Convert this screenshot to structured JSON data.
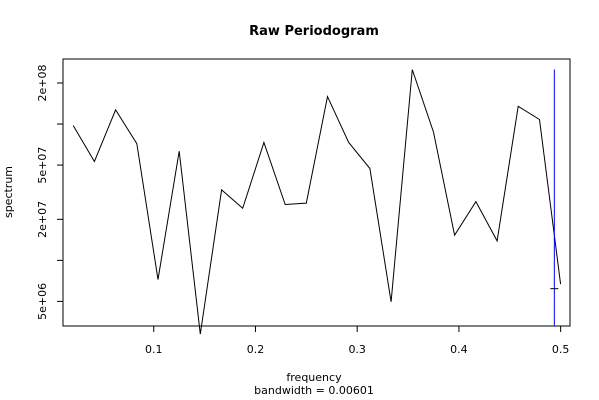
{
  "chart_data": {
    "type": "line",
    "title": "Raw Periodogram",
    "xlabel": "frequency",
    "sublabel": "bandwidth = 0.00601",
    "ylabel": "spectrum",
    "log_y": true,
    "xlim": [
      0.0108,
      0.5092
    ],
    "ylim": [
      3300000,
      300000000
    ],
    "x_ticks": [
      0.1,
      0.2,
      0.3,
      0.4,
      0.5
    ],
    "x_tick_labels": [
      "0.1",
      "0.2",
      "0.3",
      "0.4",
      "0.5"
    ],
    "y_ticks": [
      5000000,
      10000000,
      20000000,
      50000000,
      100000000,
      200000000
    ],
    "y_tick_labels": [
      "5e+06",
      "",
      "2e+07",
      "5e+07",
      "",
      "2e+08"
    ],
    "series": [
      {
        "color": "#000000",
        "x": [
          0.0208,
          0.0417,
          0.0625,
          0.0833,
          0.1042,
          0.125,
          0.1458,
          0.1667,
          0.1875,
          0.2083,
          0.2292,
          0.25,
          0.2708,
          0.2917,
          0.3125,
          0.3333,
          0.3542,
          0.375,
          0.3958,
          0.4167,
          0.4375,
          0.4583,
          0.4792,
          0.5
        ],
        "y": [
          97500000,
          53100000,
          127000000,
          71900000,
          7240000,
          63200000,
          2880000,
          32900000,
          24100000,
          73200000,
          25700000,
          26300000,
          159000000,
          73200000,
          47200000,
          4970000,
          251000000,
          87300000,
          15300000,
          27000000,
          13900000,
          135000000,
          108000000,
          6680000
        ]
      }
    ],
    "reference_line": {
      "color": "#0000ff",
      "x": 0.4938,
      "y_range": [
        3300000,
        251000000
      ],
      "tick_y": 6200000
    }
  }
}
